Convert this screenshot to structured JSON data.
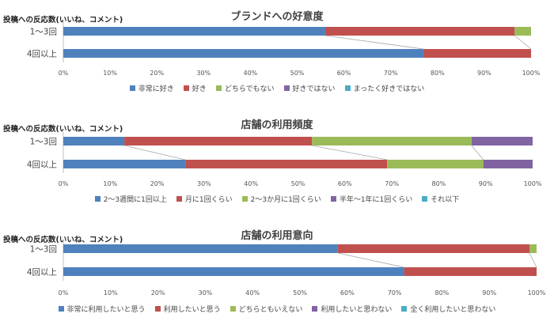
{
  "chart_data": [
    {
      "type": "bar",
      "orientation": "horizontal",
      "stacked": "percent",
      "title": "ブランドへの好意度",
      "ylabel": "投稿への反応数(いいね、コメント)",
      "categories": [
        "1～3回",
        "4回以上"
      ],
      "series": [
        {
          "name": "非常に好き",
          "values": [
            56,
            77
          ]
        },
        {
          "name": "好き",
          "values": [
            40.5,
            23
          ]
        },
        {
          "name": "どちらでもない",
          "values": [
            3.5,
            0
          ]
        },
        {
          "name": "好きではない",
          "values": [
            0,
            0
          ]
        },
        {
          "name": "まったく好きではない",
          "values": [
            0,
            0
          ]
        }
      ],
      "xticks": [
        "0%",
        "10%",
        "20%",
        "30%",
        "40%",
        "50%",
        "60%",
        "70%",
        "80%",
        "90%",
        "100%"
      ],
      "xlim": [
        0,
        100
      ],
      "legend": "bottom"
    },
    {
      "type": "bar",
      "orientation": "horizontal",
      "stacked": "percent",
      "title": "店舗の利用頻度",
      "ylabel": "投稿への反応数(いいね、コメント)",
      "categories": [
        "1～3回",
        "4回以上"
      ],
      "series": [
        {
          "name": "2～3週間に1回以上",
          "values": [
            13,
            26
          ]
        },
        {
          "name": "月に1回くらい",
          "values": [
            40,
            43
          ]
        },
        {
          "name": "2～3か月に1回くらい",
          "values": [
            34,
            20.5
          ]
        },
        {
          "name": "半年～1年に1回くらい",
          "values": [
            13,
            10.5
          ]
        },
        {
          "name": "それ以下",
          "values": [
            0,
            0
          ]
        }
      ],
      "xticks": [
        "0%",
        "10%",
        "20%",
        "30%",
        "40%",
        "50%",
        "60%",
        "70%",
        "80%",
        "90%",
        "100%"
      ],
      "xlim": [
        0,
        100
      ],
      "legend": "bottom"
    },
    {
      "type": "bar",
      "orientation": "horizontal",
      "stacked": "percent",
      "title": "店舗の利用意向",
      "ylabel": "投稿への反応数(いいね、コメント)",
      "categories": [
        "1～3回",
        "4回以上"
      ],
      "series": [
        {
          "name": "非常に利用したいと思う",
          "values": [
            58,
            72
          ]
        },
        {
          "name": "利用したいと思う",
          "values": [
            40.5,
            28
          ]
        },
        {
          "name": "どちらともいえない",
          "values": [
            1.5,
            0
          ]
        },
        {
          "name": "利用したいと思わない",
          "values": [
            0,
            0
          ]
        },
        {
          "name": "全く利用したいと思わない",
          "values": [
            0,
            0
          ]
        }
      ],
      "xticks": [
        "0%",
        "10%",
        "20%",
        "30%",
        "40%",
        "50%",
        "60%",
        "70%",
        "80%",
        "90%",
        "100%"
      ],
      "xlim": [
        0,
        100
      ],
      "legend": "bottom"
    }
  ],
  "colors": [
    "#4F81BD",
    "#C0504D",
    "#9BBB59",
    "#8064A2",
    "#4BACC6"
  ]
}
